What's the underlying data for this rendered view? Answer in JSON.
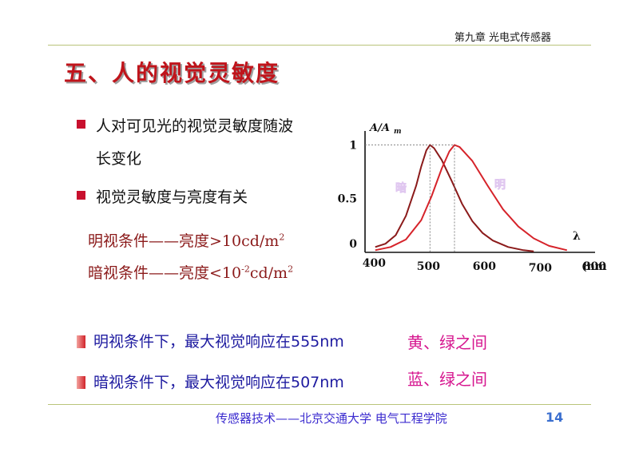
{
  "header": {
    "chapter": "第九章 光电式传感器"
  },
  "title": "五、人的视觉灵敏度",
  "bullets": [
    {
      "line1": "人对可见光的视觉灵敏度随波",
      "line2": "长变化"
    },
    {
      "line1": "视觉灵敏度与亮度有关"
    }
  ],
  "conditions": {
    "photopic": {
      "label": "明视条件——亮度>10cd/m",
      "sup": "2"
    },
    "scotopic": {
      "label_a": "暗视条件——亮度<10",
      "sup_a": "-2",
      "label_b": "cd/m",
      "sup_b": "2"
    }
  },
  "facts": [
    {
      "text": "明视条件下，最大视觉响应在555nm",
      "tag": "黄、绿之间"
    },
    {
      "text": "暗视条件下，最大视觉响应在507nm",
      "tag": "蓝、绿之间"
    }
  ],
  "footer": {
    "text": "传感器技术——北京交通大学 电气工程学院",
    "page": "14"
  },
  "colors": {
    "title": "#c0141b",
    "bullet": "#c8102e",
    "fact": "#1e1ba0",
    "tag": "#d6168f",
    "footer": "#3b2bcf",
    "rule": "#b9c47a"
  },
  "chart_data": {
    "type": "line",
    "ylabel": "A/A",
    "ylabel_sub": "m",
    "xlabel_symbol": "λ",
    "xunit": "(nm",
    "x_ticks": [
      "400",
      "500",
      "600",
      "700",
      "800"
    ],
    "y_ticks": [
      "0",
      "0.5",
      "1"
    ],
    "xlim": [
      380,
      830
    ],
    "ylim": [
      0,
      1.1
    ],
    "series": [
      {
        "name": "暗",
        "color": "#8b1a1a",
        "peak_x": 507,
        "x": [
          400,
          420,
          440,
          460,
          480,
          490,
          500,
          507,
          515,
          530,
          550,
          570,
          590,
          610,
          630,
          660,
          690,
          710
        ],
        "y": [
          0.05,
          0.08,
          0.16,
          0.34,
          0.62,
          0.8,
          0.95,
          1.0,
          0.97,
          0.86,
          0.66,
          0.45,
          0.29,
          0.18,
          0.11,
          0.05,
          0.02,
          0.01
        ]
      },
      {
        "name": "明",
        "color": "#d6232a",
        "peak_x": 555,
        "x": [
          400,
          430,
          460,
          490,
          510,
          530,
          545,
          555,
          565,
          590,
          620,
          650,
          680,
          710,
          740,
          775
        ],
        "y": [
          0.02,
          0.05,
          0.12,
          0.3,
          0.52,
          0.78,
          0.94,
          1.0,
          0.98,
          0.85,
          0.62,
          0.4,
          0.24,
          0.13,
          0.06,
          0.02
        ]
      }
    ]
  }
}
